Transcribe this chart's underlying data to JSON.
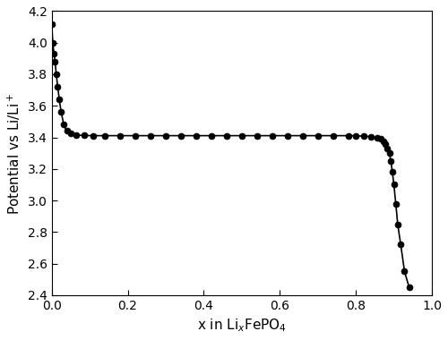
{
  "title": "",
  "xlabel": "x in Li$_x$FePO$_4$",
  "ylabel": "Potential vs Li/Li$^+$",
  "xlim": [
    0,
    1.0
  ],
  "ylim": [
    2.4,
    4.2
  ],
  "xticks": [
    0.0,
    0.2,
    0.4,
    0.6,
    0.8,
    1.0
  ],
  "yticks": [
    2.4,
    2.6,
    2.8,
    3.0,
    3.2,
    3.4,
    3.6,
    3.8,
    4.0,
    4.2
  ],
  "line_color": "#000000",
  "marker_color": "#000000",
  "background_color": "#ffffff",
  "marker_size": 5,
  "line_width": 1.2,
  "x_data": [
    0.0,
    0.003,
    0.006,
    0.009,
    0.012,
    0.016,
    0.02,
    0.025,
    0.032,
    0.04,
    0.05,
    0.065,
    0.085,
    0.11,
    0.14,
    0.18,
    0.22,
    0.26,
    0.3,
    0.34,
    0.38,
    0.42,
    0.46,
    0.5,
    0.54,
    0.58,
    0.62,
    0.66,
    0.7,
    0.74,
    0.78,
    0.8,
    0.82,
    0.84,
    0.855,
    0.865,
    0.872,
    0.878,
    0.883,
    0.888,
    0.892,
    0.896,
    0.9,
    0.905,
    0.91,
    0.918,
    0.928,
    0.94
  ],
  "y_data": [
    4.12,
    4.0,
    3.93,
    3.88,
    3.8,
    3.72,
    3.64,
    3.56,
    3.48,
    3.44,
    3.425,
    3.415,
    3.412,
    3.411,
    3.411,
    3.411,
    3.411,
    3.411,
    3.411,
    3.411,
    3.411,
    3.411,
    3.411,
    3.411,
    3.411,
    3.411,
    3.411,
    3.411,
    3.411,
    3.411,
    3.411,
    3.41,
    3.408,
    3.405,
    3.4,
    3.39,
    3.375,
    3.355,
    3.33,
    3.3,
    3.25,
    3.18,
    3.1,
    2.98,
    2.85,
    2.72,
    2.55,
    2.45
  ]
}
